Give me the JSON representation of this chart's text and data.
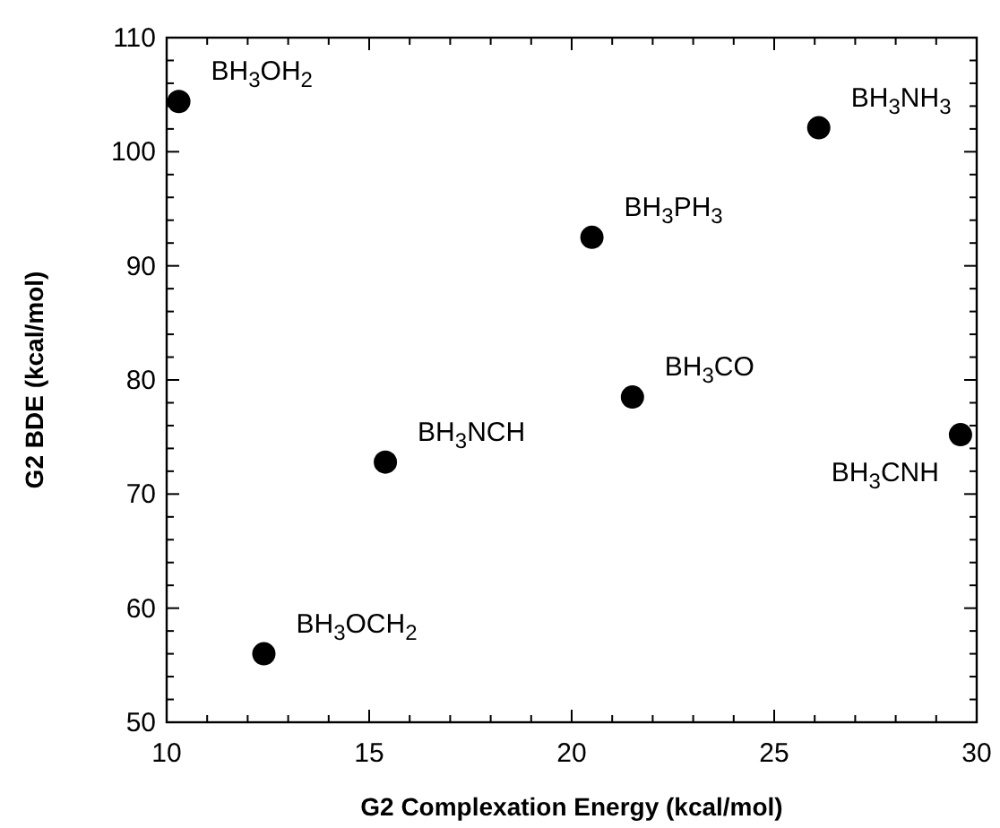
{
  "chart_data": {
    "type": "scatter",
    "xlabel": "G2 Complexation Energy   (kcal/mol)",
    "ylabel": "G2 BDE   (kcal/mol)",
    "series": [
      {
        "color": "#000000",
        "x": [
          10.3,
          26.1,
          20.5,
          21.5,
          29.6,
          15.4,
          12.4
        ],
        "values": [
          104.4,
          102.1,
          92.5,
          78.5,
          75.2,
          72.8,
          56.0
        ]
      }
    ],
    "marker": "circle",
    "grid": false,
    "xlim": [
      10,
      30
    ],
    "ylim": [
      50,
      110
    ],
    "xticks": [
      10,
      {
        "value": 11,
        "label": null
      },
      {
        "value": 12,
        "label": null
      },
      {
        "value": 13,
        "label": null
      },
      {
        "value": 14,
        "label": null
      },
      15,
      {
        "value": 16,
        "label": null
      },
      {
        "value": 17,
        "label": null
      },
      {
        "value": 18,
        "label": null
      },
      {
        "value": 19,
        "label": null
      },
      20,
      {
        "value": 21,
        "label": null
      },
      {
        "value": 22,
        "label": null
      },
      {
        "value": 23,
        "label": null
      },
      {
        "value": 24,
        "label": null
      },
      25,
      {
        "value": 26,
        "label": null
      },
      {
        "value": 27,
        "label": null
      },
      {
        "value": 28,
        "label": null
      },
      {
        "value": 29,
        "label": null
      },
      30
    ],
    "yticks": [
      50,
      {
        "value": 52,
        "label": null
      },
      {
        "value": 54,
        "label": null
      },
      {
        "value": 56,
        "label": null
      },
      {
        "value": 58,
        "label": null
      },
      60,
      {
        "value": 62,
        "label": null
      },
      {
        "value": 64,
        "label": null
      },
      {
        "value": 66,
        "label": null
      },
      {
        "value": 68,
        "label": null
      },
      70,
      {
        "value": 72,
        "label": null
      },
      {
        "value": 74,
        "label": null
      },
      {
        "value": 76,
        "label": null
      },
      {
        "value": 78,
        "label": null
      },
      80,
      {
        "value": 82,
        "label": null
      },
      {
        "value": 84,
        "label": null
      },
      {
        "value": 86,
        "label": null
      },
      {
        "value": 88,
        "label": null
      },
      90,
      {
        "value": 92,
        "label": null
      },
      {
        "value": 94,
        "label": null
      },
      {
        "value": 96,
        "label": null
      },
      {
        "value": 98,
        "label": null
      },
      100,
      {
        "value": 102,
        "label": null
      },
      {
        "value": 104,
        "label": null
      },
      {
        "value": 106,
        "label": null
      },
      {
        "value": 108,
        "label": null
      },
      110
    ],
    "annotations": [
      {
        "text": "BH$_{3}$OH$_{2}$",
        "x": 10.3,
        "y": 104.4
      },
      {
        "text": "BH$_{3}$NH$_{3}$",
        "x": 26.1,
        "y": 102.1
      },
      {
        "text": "BH$_{3}$PH$_{3}$",
        "x": 20.5,
        "y": 92.5
      },
      {
        "text": "BH$_{3}$CO",
        "x": 21.5,
        "y": 78.5
      },
      {
        "text": "BH$_{3}$CNH",
        "x": 29.6,
        "y": 75.2
      },
      {
        "text": "BH$_{3}$NCH",
        "x": 15.4,
        "y": 72.8
      },
      {
        "text": "BH$_{3}$OCH$_{2}$",
        "x": 12.4,
        "y": 56.0
      }
    ]
  }
}
